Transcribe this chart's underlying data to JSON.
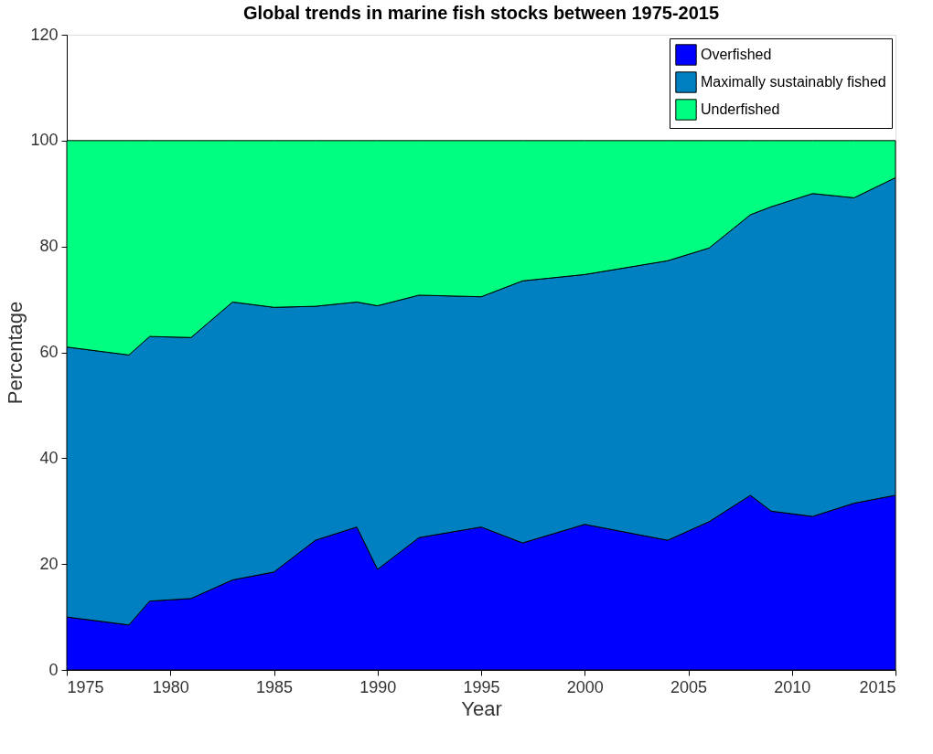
{
  "chart_data": {
    "type": "area",
    "stacked": true,
    "title": "Global trends in marine fish stocks between 1975-2015",
    "xlabel": "Year",
    "ylabel": "Percentage",
    "x": [
      1975,
      1978,
      1979,
      1981,
      1983,
      1985,
      1987,
      1989,
      1990,
      1992,
      1995,
      1997,
      2000,
      2004,
      2006,
      2008,
      2009,
      2011,
      2013,
      2015
    ],
    "series": [
      {
        "name": "Overfished",
        "color": "#0000ff",
        "values": [
          10,
          8.5,
          13,
          13.5,
          17,
          18.5,
          24.5,
          27,
          19,
          25,
          27,
          24,
          27.5,
          24.5,
          28,
          33,
          30,
          29,
          31.5,
          33
        ]
      },
      {
        "name": "Maximally sustainably fished",
        "color": "#0080c0",
        "values": [
          51,
          51,
          50,
          49.3,
          52.5,
          50,
          44.2,
          42.5,
          49.8,
          45.8,
          43.5,
          49.5,
          47.2,
          52.8,
          51.7,
          53,
          57.5,
          61,
          57.7,
          60
        ]
      },
      {
        "name": "Underfished",
        "color": "#00ff80",
        "values": [
          39,
          40.5,
          37,
          37.2,
          30.5,
          31.5,
          31.3,
          30.5,
          31.2,
          29.2,
          29.5,
          26.5,
          25.3,
          22.7,
          20.3,
          14,
          12.5,
          10,
          10.8,
          7
        ]
      }
    ],
    "xlim": [
      1975,
      2015
    ],
    "xticks": [
      1975,
      1980,
      1985,
      1990,
      1995,
      2000,
      2005,
      2010,
      2015
    ],
    "ylim": [
      0,
      120
    ],
    "yticks": [
      0,
      20,
      40,
      60,
      80,
      100,
      120
    ],
    "grid": false,
    "legend": "top right"
  }
}
